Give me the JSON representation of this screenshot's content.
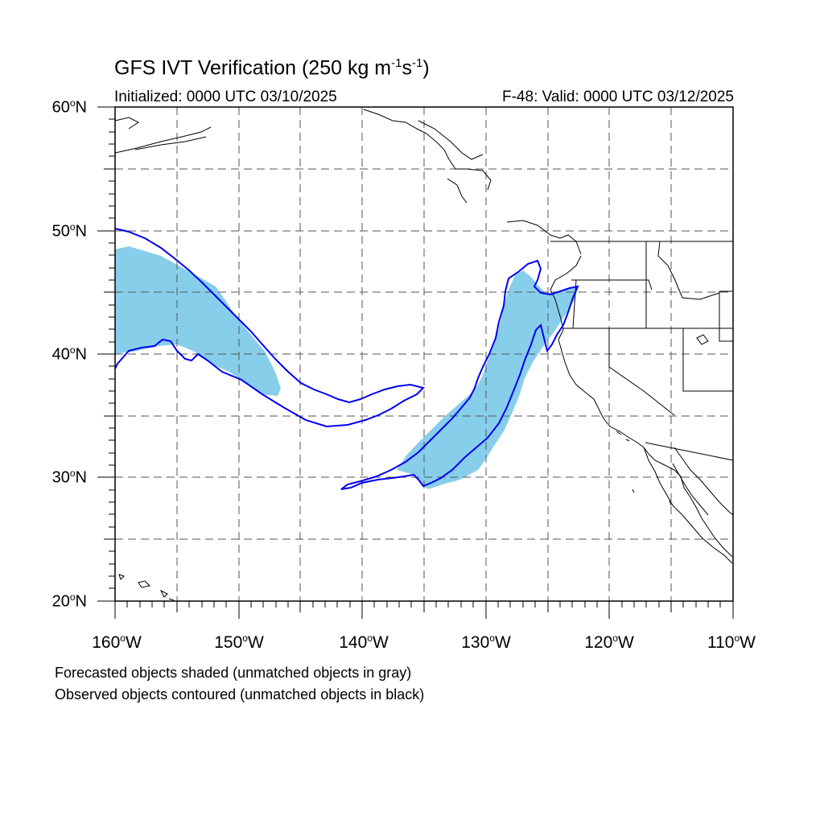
{
  "title": {
    "main": "GFS IVT Verification (250 kg m",
    "exp1": "-1",
    "mid": "s",
    "exp2": "-1",
    "end": ")"
  },
  "init_label": "Initialized: 0000 UTC 03/10/2025",
  "valid_label": "F-48: Valid: 0000 UTC 03/12/2025",
  "lat_labels": [
    {
      "num": "60",
      "deg": "o",
      "hem": "N"
    },
    {
      "num": "50",
      "deg": "o",
      "hem": "N"
    },
    {
      "num": "40",
      "deg": "o",
      "hem": "N"
    },
    {
      "num": "30",
      "deg": "o",
      "hem": "N"
    },
    {
      "num": "20",
      "deg": "o",
      "hem": "N"
    }
  ],
  "lon_labels": [
    {
      "num": "160",
      "deg": "o",
      "hem": "W"
    },
    {
      "num": "150",
      "deg": "o",
      "hem": "W"
    },
    {
      "num": "140",
      "deg": "o",
      "hem": "W"
    },
    {
      "num": "130",
      "deg": "o",
      "hem": "W"
    },
    {
      "num": "120",
      "deg": "o",
      "hem": "W"
    },
    {
      "num": "110",
      "deg": "o",
      "hem": "W"
    }
  ],
  "notes": [
    "Forecasted objects shaded (unmatched objects in gray)",
    "Observed objects contoured (unmatched objects in black)"
  ],
  "map_extent": {
    "lon_min": -160,
    "lon_max": -110,
    "lat_min": 20,
    "lat_max": 60
  },
  "colors": {
    "forecast_shade": "#87ceeb",
    "observed_contour": "#0000ee",
    "coastline": "#000000",
    "gridline": "#555555"
  }
}
